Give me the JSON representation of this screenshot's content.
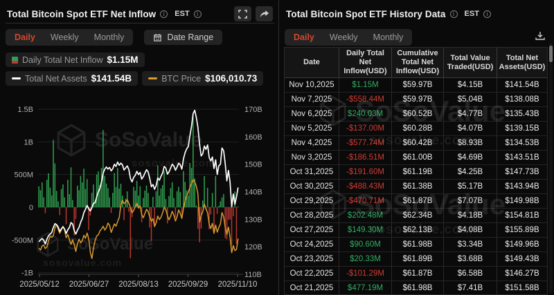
{
  "watermark": {
    "brand": "SoSoValue",
    "domain": "sosovalue.com"
  },
  "colors": {
    "accent_red": "#d5452f",
    "table_green": "#2eae62",
    "table_red": "#cf3b31"
  },
  "left_panel": {
    "title": "Total Bitcoin Spot ETF Net Inflow",
    "timezone": "EST",
    "tabs": [
      {
        "label": "Daily",
        "active": true
      },
      {
        "label": "Weekly",
        "active": false
      },
      {
        "label": "Monthly",
        "active": false
      }
    ],
    "date_range_label": "Date Range",
    "legend": [
      {
        "label": "Daily Total Net Inflow",
        "value": "$1.15M"
      },
      {
        "label": "Total Net Assets",
        "value": "$141.54B"
      },
      {
        "label": "BTC Price",
        "value": "$106,010.73"
      }
    ]
  },
  "right_panel": {
    "title": "Total Bitcoin Spot ETF History Data",
    "timezone": "EST",
    "tabs": [
      {
        "label": "Daily",
        "active": true
      },
      {
        "label": "Weekly",
        "active": false
      },
      {
        "label": "Monthly",
        "active": false
      }
    ],
    "table": {
      "columns": [
        "Date",
        "Daily Total Net\nInflow(USD)",
        "Cumulative\nTotal Net\nInflow(USD)",
        "Total Value\nTraded(USD)",
        "Total Net\nAssets(USD)"
      ],
      "rows": [
        {
          "date": "Nov 10,2025",
          "inflow": "$1.15M",
          "cumulative": "$59.97B",
          "traded": "$4.15B",
          "assets": "$141.54B"
        },
        {
          "date": "Nov 7,2025",
          "inflow": "-$558.44M",
          "cumulative": "$59.97B",
          "traded": "$5.04B",
          "assets": "$138.08B"
        },
        {
          "date": "Nov 6,2025",
          "inflow": "$240.03M",
          "cumulative": "$60.52B",
          "traded": "$4.77B",
          "assets": "$135.43B"
        },
        {
          "date": "Nov 5,2025",
          "inflow": "-$137.00M",
          "cumulative": "$60.28B",
          "traded": "$4.07B",
          "assets": "$139.15B"
        },
        {
          "date": "Nov 4,2025",
          "inflow": "-$577.74M",
          "cumulative": "$60.42B",
          "traded": "$8.93B",
          "assets": "$134.53B"
        },
        {
          "date": "Nov 3,2025",
          "inflow": "-$186.51M",
          "cumulative": "$61.00B",
          "traded": "$4.69B",
          "assets": "$143.51B"
        },
        {
          "date": "Oct 31,2025",
          "inflow": "-$191.60M",
          "cumulative": "$61.19B",
          "traded": "$4.25B",
          "assets": "$147.73B"
        },
        {
          "date": "Oct 30,2025",
          "inflow": "-$488.43M",
          "cumulative": "$61.38B",
          "traded": "$5.17B",
          "assets": "$143.94B"
        },
        {
          "date": "Oct 29,2025",
          "inflow": "-$470.71M",
          "cumulative": "$61.87B",
          "traded": "$7.07B",
          "assets": "$149.98B"
        },
        {
          "date": "Oct 28,2025",
          "inflow": "$202.48M",
          "cumulative": "$62.34B",
          "traded": "$4.18B",
          "assets": "$154.81B"
        },
        {
          "date": "Oct 27,2025",
          "inflow": "$149.30M",
          "cumulative": "$62.13B",
          "traded": "$4.08B",
          "assets": "$155.89B"
        },
        {
          "date": "Oct 24,2025",
          "inflow": "$90.60M",
          "cumulative": "$61.98B",
          "traded": "$3.34B",
          "assets": "$149.96B"
        },
        {
          "date": "Oct 23,2025",
          "inflow": "$20.33M",
          "cumulative": "$61.89B",
          "traded": "$3.68B",
          "assets": "$149.43B"
        },
        {
          "date": "Oct 22,2025",
          "inflow": "-$101.29M",
          "cumulative": "$61.87B",
          "traded": "$6.58B",
          "assets": "$146.27B"
        },
        {
          "date": "Oct 21,2025",
          "inflow": "$477.19M",
          "cumulative": "$61.98B",
          "traded": "$7.41B",
          "assets": "$151.58B"
        }
      ]
    }
  },
  "chart_data": {
    "type": "bar",
    "title": "Total Bitcoin Spot ETF Net Inflow",
    "x_tick_labels": [
      "2025/05/12",
      "2025/06/27",
      "2025/08/13",
      "2025/09/29",
      "2025/11/10"
    ],
    "left_axis": {
      "ticks": [
        "1.5B",
        "1B",
        "500M",
        "0",
        "-500M",
        "-1B"
      ],
      "range_musd": [
        -1000,
        1500
      ],
      "label": "Daily Total Net Inflow (USD)"
    },
    "right_axis": {
      "ticks": [
        "170B",
        "160B",
        "150B",
        "140B",
        "130B",
        "120B",
        "110B"
      ],
      "range_busd": [
        110,
        170
      ],
      "label": "Total Net Assets (USD)"
    },
    "grid": true,
    "legend_position": "top",
    "colors": {
      "bar_positive": "#2f9e4f",
      "bar_negative": "#b5362f",
      "assets_line": "#ffffff",
      "btc_line": "#d99a2e"
    },
    "series": [
      {
        "name": "Daily Total Net Inflow (USD M)",
        "type": "bar",
        "values": [
          320,
          260,
          380,
          150,
          -90,
          420,
          520,
          300,
          180,
          1030,
          670,
          250,
          90,
          -120,
          280,
          350,
          150,
          -260,
          420,
          200,
          610,
          110,
          -430,
          -180,
          330,
          260,
          480,
          380,
          590,
          280,
          431,
          -350,
          -128,
          220,
          350,
          102,
          501,
          548,
          340,
          601,
          1180,
          480,
          363,
          290,
          150,
          -86,
          220,
          524,
          310,
          601,
          286,
          360,
          178,
          -197,
          130,
          243,
          -68,
          -780,
          -152,
          312,
          254,
          403,
          178,
          321,
          -230,
          142,
          254,
          333,
          219,
          -310,
          -516,
          158,
          -301,
          246,
          642,
          178,
          289,
          339,
          553,
          126,
          -246,
          172,
          292,
          383,
          142,
          -152,
          244,
          312,
          231,
          -175,
          553,
          388,
          260,
          180,
          676,
          601,
          1400,
          442,
          26,
          -330,
          -536,
          -326,
          103,
          477,
          -40,
          298,
          -336,
          -110,
          218,
          -372,
          477.19,
          -101.29,
          20.33,
          90.6,
          149.3,
          202.48,
          -470.71,
          -488.43,
          -191.6,
          -186.51,
          -577.74,
          -137,
          240.03,
          -558.44,
          1.15
        ]
      },
      {
        "name": "Total Net Assets (USD B)",
        "type": "line",
        "values": [
          121.8,
          122.5,
          123,
          122.4,
          121,
          122.8,
          124,
          124.6,
          125.2,
          127,
          128.4,
          128,
          127.2,
          125.6,
          126.5,
          127.3,
          126.4,
          124.8,
          126.2,
          127,
          128.8,
          128.2,
          125.9,
          124.6,
          126,
          127.1,
          128.9,
          130.2,
          132.4,
          133.6,
          135,
          133.8,
          133,
          134.2,
          135.8,
          136,
          138.2,
          140,
          141.2,
          143.6,
          146.8,
          148.2,
          149,
          148.2,
          148.8,
          147.6,
          148.4,
          150,
          149.2,
          150.8,
          149.6,
          150.4,
          149.8,
          147.9,
          148.6,
          149.4,
          148,
          144.8,
          143.6,
          145.2,
          146,
          147.4,
          146.2,
          147,
          144.6,
          145.5,
          146.8,
          148,
          147.2,
          144.9,
          141.8,
          142.6,
          140.9,
          142.2,
          145,
          144.2,
          145.6,
          146.8,
          149.2,
          148.6,
          146.4,
          147.2,
          148.6,
          150,
          149.4,
          147.8,
          149,
          150.4,
          149.8,
          148.2,
          152,
          154.2,
          155.6,
          156.4,
          160.2,
          163.8,
          168.4,
          169.6,
          167,
          163.4,
          157.2,
          153,
          153.8,
          156.6,
          155.4,
          157,
          152.4,
          151.2,
          152.6,
          148.4,
          151.58,
          146.27,
          149.43,
          149.96,
          155.89,
          154.81,
          149.98,
          143.94,
          147.73,
          143.51,
          134.53,
          139.15,
          135.43,
          138.08,
          141.54
        ]
      },
      {
        "name": "BTC Price (USD)",
        "type": "line",
        "values": [
          102800,
          102100,
          103500,
          103800,
          102600,
          103200,
          105200,
          106800,
          106400,
          107000,
          109700,
          110800,
          109200,
          107800,
          109000,
          110100,
          108900,
          106300,
          107400,
          105700,
          104000,
          105600,
          103900,
          101600,
          104200,
          105800,
          104600,
          105300,
          107100,
          106100,
          107900,
          105900,
          101400,
          99200,
          102700,
          105400,
          106900,
          107300,
          108600,
          109300,
          110200,
          108900,
          109700,
          111300,
          110500,
          108100,
          109600,
          111000,
          110200,
          111800,
          113200,
          117500,
          119100,
          117900,
          118400,
          119300,
          118000,
          116500,
          114800,
          115600,
          116900,
          118100,
          116400,
          117200,
          114200,
          113100,
          114600,
          116000,
          115200,
          113400,
          111900,
          112800,
          110100,
          111400,
          113700,
          112500,
          113300,
          114800,
          116700,
          115900,
          113800,
          112400,
          113600,
          115300,
          114100,
          112000,
          113500,
          115800,
          114600,
          112900,
          116400,
          118900,
          120600,
          121800,
          123400,
          124900,
          126100,
          125400,
          123800,
          121300,
          111600,
          113900,
          115200,
          117800,
          116300,
          114700,
          110900,
          109400,
          111200,
          107800,
          110600,
          108200,
          109800,
          111000,
          114900,
          113400,
          109700,
          107400,
          109900,
          106500,
          101200,
          103600,
          101900,
          102300,
          106010.73
        ]
      }
    ]
  }
}
